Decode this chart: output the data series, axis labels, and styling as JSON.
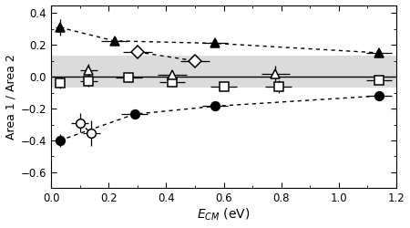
{
  "title": "",
  "xlabel": "E$_{CM}$ (eV)",
  "ylabel": "Area 1 / Area 2",
  "xlim": [
    0,
    1.2
  ],
  "ylim": [
    -0.7,
    0.45
  ],
  "yticks": [
    -0.6,
    -0.4,
    -0.2,
    0.0,
    0.2,
    0.4
  ],
  "xticks": [
    0.0,
    0.2,
    0.4,
    0.6,
    0.8,
    1.0,
    1.2
  ],
  "hline_y": 0.0,
  "shaded_band": [
    -0.07,
    0.13
  ],
  "series": {
    "filled_triangle": {
      "x": [
        0.03,
        0.22,
        0.57,
        1.14
      ],
      "y": [
        0.31,
        0.225,
        0.21,
        0.15
      ],
      "xerr": [
        0.015,
        0.045,
        0.045,
        0.045
      ],
      "yerr": [
        0.05,
        0.03,
        0.02,
        0.02
      ],
      "marker": "^",
      "filled": true,
      "ms": 7
    },
    "open_diamond": {
      "x": [
        0.3,
        0.5
      ],
      "y": [
        0.155,
        0.1
      ],
      "xerr": [
        0.05,
        0.05
      ],
      "yerr": [
        0.035,
        0.025
      ],
      "marker": "D",
      "filled": false,
      "ms": 7
    },
    "open_triangle": {
      "x": [
        0.13,
        0.42,
        0.78
      ],
      "y": [
        0.04,
        0.01,
        0.02
      ],
      "xerr": [
        0.03,
        0.05,
        0.05
      ],
      "yerr": [
        0.04,
        0.03,
        0.05
      ],
      "marker": "^",
      "filled": false,
      "ms": 7
    },
    "open_square": {
      "x": [
        0.03,
        0.13,
        0.27,
        0.42,
        0.6,
        0.79,
        1.14
      ],
      "y": [
        -0.04,
        -0.025,
        -0.005,
        -0.035,
        -0.06,
        -0.06,
        -0.02
      ],
      "xerr": [
        0.015,
        0.03,
        0.045,
        0.045,
        0.045,
        0.045,
        0.045
      ],
      "yerr": [
        0.035,
        0.035,
        0.025,
        0.025,
        0.025,
        0.04,
        0.025
      ],
      "marker": "s",
      "filled": false,
      "ms": 7
    },
    "open_circle": {
      "x": [
        0.1,
        0.14
      ],
      "y": [
        -0.29,
        -0.355
      ],
      "xerr": [
        0.03,
        0.03
      ],
      "yerr": [
        0.06,
        0.08
      ],
      "marker": "o",
      "filled": false,
      "ms": 7
    },
    "filled_circle": {
      "x": [
        0.03,
        0.29,
        0.57,
        1.14
      ],
      "y": [
        -0.4,
        -0.235,
        -0.185,
        -0.12
      ],
      "xerr": [
        0.015,
        0.045,
        0.045,
        0.045
      ],
      "yerr": [
        0.04,
        0.03,
        0.025,
        0.02
      ],
      "marker": "o",
      "filled": true,
      "ms": 7
    }
  },
  "dashed_lines": [
    {
      "x": [
        0.03,
        0.22,
        0.57,
        1.14
      ],
      "y": [
        0.31,
        0.225,
        0.21,
        0.15
      ]
    },
    {
      "x": [
        0.03,
        0.29,
        0.57,
        1.14
      ],
      "y": [
        -0.4,
        -0.235,
        -0.185,
        -0.12
      ]
    },
    {
      "x": [
        0.3,
        0.5
      ],
      "y": [
        0.155,
        0.1
      ]
    },
    {
      "x": [
        0.1,
        0.14
      ],
      "y": [
        -0.29,
        -0.355
      ]
    }
  ],
  "shaded_color": "#cccccc",
  "fig_width": 4.5,
  "fig_height": 2.5
}
